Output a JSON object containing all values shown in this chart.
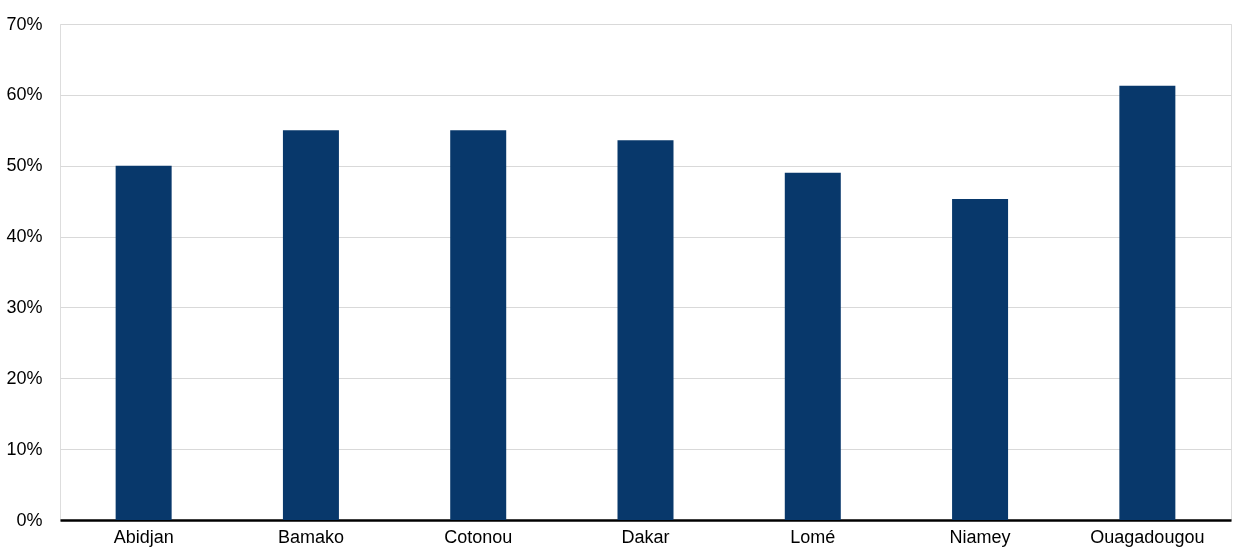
{
  "chart_data": {
    "type": "bar",
    "categories": [
      "Abidjan",
      "Bamako",
      "Cotonou",
      "Dakar",
      "Lomé",
      "Niamey",
      "Ouagadougou"
    ],
    "values": [
      50,
      55,
      55,
      53.6,
      49,
      45.3,
      61.3
    ],
    "color": "#08386b",
    "ylim": [
      0,
      70
    ],
    "yticks": [
      {
        "value": 0,
        "label": "0%"
      },
      {
        "value": 10,
        "label": "10%"
      },
      {
        "value": 20,
        "label": "20%"
      },
      {
        "value": 30,
        "label": "30%"
      },
      {
        "value": 40,
        "label": "40%"
      },
      {
        "value": 50,
        "label": "50%"
      },
      {
        "value": 60,
        "label": "60%"
      },
      {
        "value": 70,
        "label": "70%"
      }
    ],
    "grid": "y"
  }
}
